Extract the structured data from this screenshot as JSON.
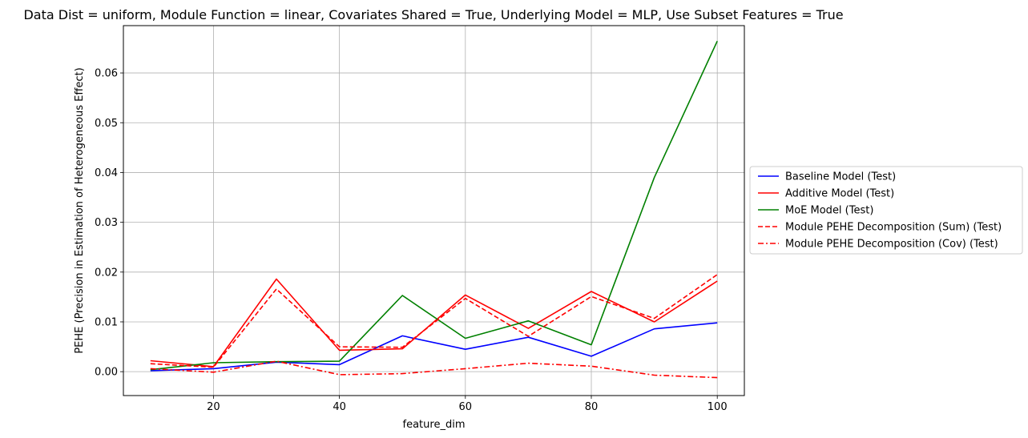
{
  "chart_data": {
    "type": "line",
    "title": "Data Dist = uniform, Module Function = linear, Covariates Shared = True, Underlying Model = MLP, Use Subset Features = True",
    "xlabel": "feature_dim",
    "ylabel": "PEHE (Precision in Estimation of Heterogeneous Effect)",
    "xlim": [
      5.7,
      104.3
    ],
    "ylim": [
      -0.0048,
      0.0695
    ],
    "x_ticks": [
      "20",
      "40",
      "60",
      "80",
      "100"
    ],
    "x_tick_values": [
      20,
      40,
      60,
      80,
      100
    ],
    "y_ticks": [
      "0.00",
      "0.01",
      "0.02",
      "0.03",
      "0.04",
      "0.05",
      "0.06"
    ],
    "y_tick_values": [
      0.0,
      0.01,
      0.02,
      0.03,
      0.04,
      0.05,
      0.06
    ],
    "grid": true,
    "legend_placement": "center-left outside right",
    "x": [
      10,
      20,
      30,
      40,
      50,
      60,
      70,
      80,
      90,
      100
    ],
    "series": [
      {
        "name": "Baseline Model (Test)",
        "color": "#0000ff",
        "dash": "solid",
        "values": [
          0.0002,
          0.0006,
          0.0019,
          0.0014,
          0.0072,
          0.0045,
          0.0069,
          0.0031,
          0.0086,
          0.0098
        ]
      },
      {
        "name": "Additive Model (Test)",
        "color": "#ff0000",
        "dash": "solid",
        "values": [
          0.0022,
          0.001,
          0.0186,
          0.0043,
          0.0046,
          0.0154,
          0.0087,
          0.0161,
          0.01,
          0.0182
        ]
      },
      {
        "name": "MoE Model (Test)",
        "color": "#008000",
        "dash": "solid",
        "values": [
          0.0004,
          0.0018,
          0.002,
          0.0021,
          0.0153,
          0.0067,
          0.0102,
          0.0054,
          0.039,
          0.0664
        ]
      },
      {
        "name": "Module PEHE Decomposition (Sum) (Test)",
        "color": "#ff0000",
        "dash": "dashed",
        "values": [
          0.0016,
          0.0009,
          0.0166,
          0.005,
          0.0049,
          0.0147,
          0.0071,
          0.0151,
          0.0107,
          0.0195
        ]
      },
      {
        "name": "Module PEHE Decomposition (Cov) (Test)",
        "color": "#ff0000",
        "dash": "dashdot",
        "values": [
          0.0006,
          -0.0001,
          0.0021,
          -0.0006,
          -0.0004,
          0.0006,
          0.0017,
          0.0011,
          -0.0007,
          -0.0012
        ]
      }
    ]
  }
}
